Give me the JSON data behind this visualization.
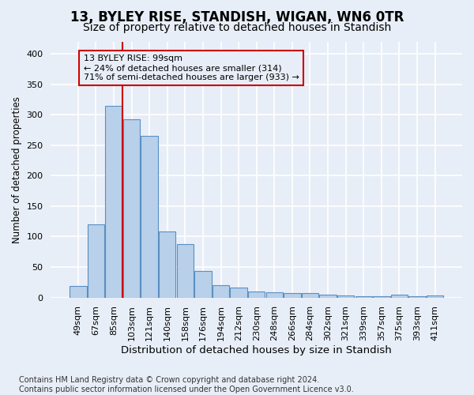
{
  "title": "13, BYLEY RISE, STANDISH, WIGAN, WN6 0TR",
  "subtitle": "Size of property relative to detached houses in Standish",
  "xlabel": "Distribution of detached houses by size in Standish",
  "ylabel": "Number of detached properties",
  "categories": [
    "49sqm",
    "67sqm",
    "85sqm",
    "103sqm",
    "121sqm",
    "140sqm",
    "158sqm",
    "176sqm",
    "194sqm",
    "212sqm",
    "230sqm",
    "248sqm",
    "266sqm",
    "284sqm",
    "302sqm",
    "321sqm",
    "339sqm",
    "357sqm",
    "375sqm",
    "393sqm",
    "411sqm"
  ],
  "values": [
    19,
    120,
    315,
    293,
    265,
    108,
    87,
    44,
    20,
    16,
    10,
    8,
    7,
    7,
    5,
    4,
    2,
    2,
    5,
    2,
    3
  ],
  "bar_color": "#b8d0ea",
  "bar_edge_color": "#5a8fc2",
  "bg_color": "#e8eef7",
  "grid_color": "#ffffff",
  "ref_line_color": "#cc0000",
  "ref_line_x": 2.5,
  "annotation_text": "13 BYLEY RISE: 99sqm\n← 24% of detached houses are smaller (314)\n71% of semi-detached houses are larger (933) →",
  "annotation_box_edgecolor": "#cc0000",
  "ylim": [
    0,
    420
  ],
  "yticks": [
    0,
    50,
    100,
    150,
    200,
    250,
    300,
    350,
    400
  ],
  "footnote": "Contains HM Land Registry data © Crown copyright and database right 2024.\nContains public sector information licensed under the Open Government Licence v3.0.",
  "title_fontsize": 12,
  "subtitle_fontsize": 10,
  "xlabel_fontsize": 9.5,
  "ylabel_fontsize": 8.5,
  "tick_fontsize": 8,
  "annotation_fontsize": 8,
  "footnote_fontsize": 7
}
